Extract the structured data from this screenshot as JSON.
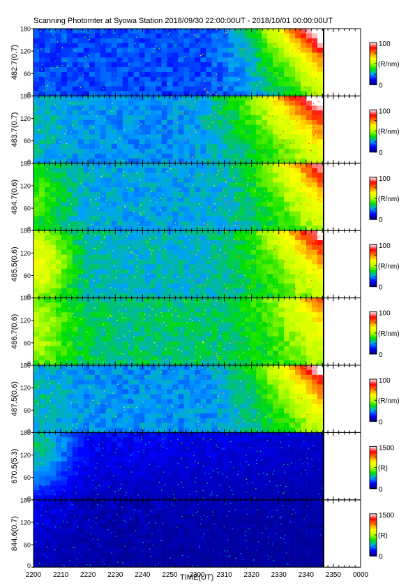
{
  "chart_data": {
    "type": "heatmap",
    "title": "Scanning Photomter at Syowa Station 2018/09/30 22:00:00UT - 2018/10/01 00:00:00UT",
    "xlabel": "TIME(UT)",
    "x_ticks": [
      "2200",
      "2210",
      "2220",
      "2230",
      "2240",
      "2250",
      "2300",
      "2310",
      "2320",
      "2330",
      "2340",
      "2350",
      "0000"
    ],
    "y_ticks": [
      "0",
      "60",
      "120",
      "180"
    ],
    "ylim": [
      0,
      180
    ],
    "data_end": "2346",
    "colormap": [
      "#000080",
      "#0000ff",
      "#00a0ff",
      "#00e000",
      "#c0ff00",
      "#ffff00",
      "#ff8000",
      "#ff0000",
      "#ffffff"
    ],
    "panels": [
      {
        "ylabel": "482.7(0.7)",
        "cbar_max": "100",
        "cbar_min": "0",
        "unit": "(R/nm)",
        "base": 0.18,
        "left": 0.0,
        "ramp": 0.55,
        "topbright": 0.35,
        "rampstart": 0.55
      },
      {
        "ylabel": "483.7(0.7)",
        "cbar_max": "100",
        "cbar_min": "0",
        "unit": "(R/nm)",
        "base": 0.24,
        "left": 0.05,
        "ramp": 0.5,
        "topbright": 0.3,
        "rampstart": 0.45
      },
      {
        "ylabel": "484.7(0.6)",
        "cbar_max": "100",
        "cbar_min": "0",
        "unit": "(R/nm)",
        "base": 0.26,
        "left": 0.15,
        "ramp": 0.42,
        "topbright": 0.2,
        "rampstart": 0.55
      },
      {
        "ylabel": "485.5(0.6)",
        "cbar_max": "100",
        "cbar_min": "0",
        "unit": "(R/nm)",
        "base": 0.28,
        "left": 0.32,
        "ramp": 0.42,
        "topbright": 0.25,
        "rampstart": 0.55
      },
      {
        "ylabel": "486.7(0.6)",
        "cbar_max": "100",
        "cbar_min": "0",
        "unit": "(R/nm)",
        "base": 0.32,
        "left": 0.18,
        "ramp": 0.3,
        "topbright": 0.1,
        "rampstart": 0.6
      },
      {
        "ylabel": "487.5(0.6)",
        "cbar_max": "100",
        "cbar_min": "0",
        "unit": "(R/nm)",
        "base": 0.24,
        "left": 0.05,
        "ramp": 0.45,
        "topbright": 0.3,
        "rampstart": 0.55
      },
      {
        "ylabel": "670.5(5.3)",
        "cbar_max": "1500",
        "cbar_min": "0",
        "unit": "(R)",
        "base": 0.12,
        "left": 0.25,
        "ramp": 0.0,
        "topbright": 0.0,
        "rampstart": 0.9,
        "dark": true
      },
      {
        "ylabel": "844.6(0.7)",
        "cbar_max": "1500",
        "cbar_min": "0",
        "unit": "(R)",
        "base": 0.04,
        "left": 0.05,
        "ramp": 0.0,
        "topbright": 0.0,
        "rampstart": 0.9,
        "dark": true
      }
    ]
  }
}
